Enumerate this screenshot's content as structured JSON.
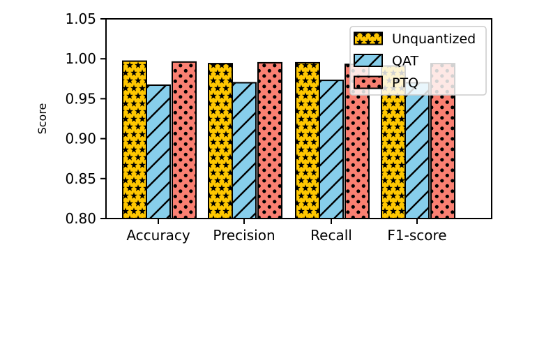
{
  "figure": {
    "background": "#ffffff"
  },
  "chart_data": {
    "type": "bar",
    "title": "",
    "xlabel": "",
    "ylabel": "Score",
    "categories": [
      "Accuracy",
      "Precision",
      "Recall",
      "F1-score"
    ],
    "series": [
      {
        "name": "Unquantized",
        "values": [
          0.997,
          0.994,
          0.995,
          0.991
        ],
        "color": "#FFC700",
        "hatch": "star",
        "hatch_color": "#000000"
      },
      {
        "name": "QAT",
        "values": [
          0.967,
          0.97,
          0.973,
          0.97
        ],
        "color": "#87CEEB",
        "hatch": "diagonal",
        "hatch_color": "#000000"
      },
      {
        "name": "PTQ",
        "values": [
          0.996,
          0.995,
          0.993,
          0.994
        ],
        "color": "#FA8072",
        "hatch": "dot",
        "hatch_color": "#000000"
      }
    ],
    "ylim": [
      0.8,
      1.05
    ],
    "yticks": [
      0.8,
      0.85,
      0.9,
      0.95,
      1.0,
      1.05
    ],
    "ytick_format_decimals": 2,
    "grid": false,
    "legend_position": "upper right",
    "legend_background": "#ffffff",
    "legend_border_color": "#cccccc",
    "bar_edge_color": "#000000",
    "axis_color": "#000000"
  }
}
